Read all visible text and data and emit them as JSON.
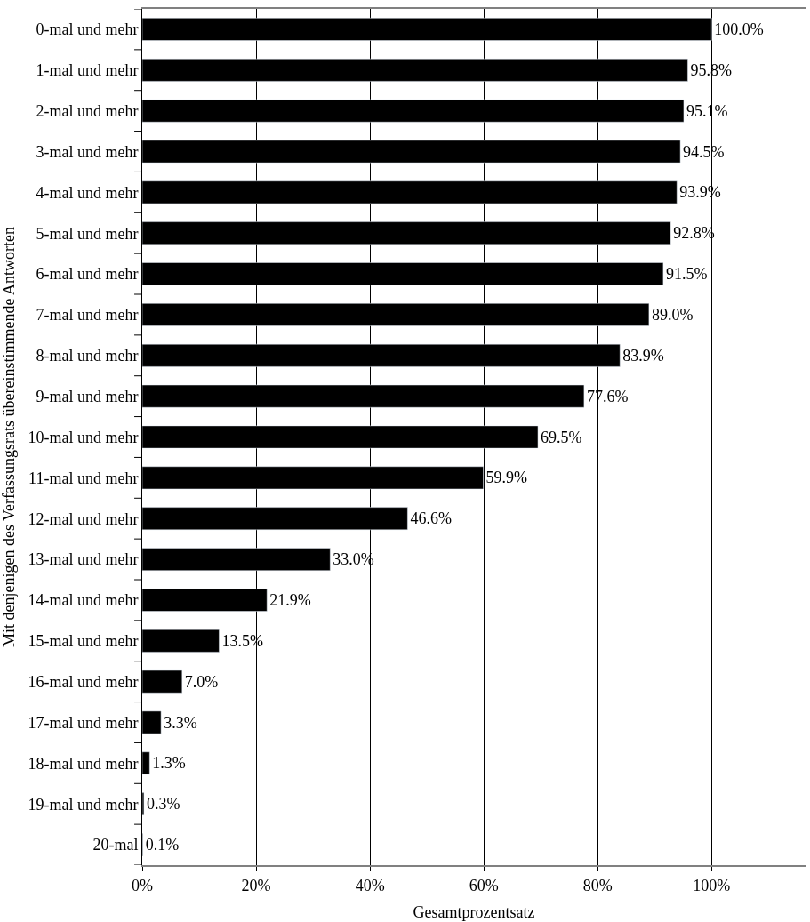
{
  "chart_data": {
    "type": "bar",
    "orientation": "horizontal",
    "xlabel": "Gesamtprozentsatz",
    "ylabel": "Mit denjenigen des Verfassungsrats übereinstimmende Antworten",
    "categories": [
      "0-mal und mehr",
      "1-mal und mehr",
      "2-mal und mehr",
      "3-mal und mehr",
      "4-mal und mehr",
      "5-mal und mehr",
      "6-mal und mehr",
      "7-mal und mehr",
      "8-mal und mehr",
      "9-mal und mehr",
      "10-mal und mehr",
      "11-mal und mehr",
      "12-mal und mehr",
      "13-mal und mehr",
      "14-mal und mehr",
      "15-mal und mehr",
      "16-mal und mehr",
      "17-mal und mehr",
      "18-mal und mehr",
      "19-mal und mehr",
      "20-mal"
    ],
    "values": [
      100.0,
      95.8,
      95.1,
      94.5,
      93.9,
      92.8,
      91.5,
      89.0,
      83.9,
      77.6,
      69.5,
      59.9,
      46.6,
      33.0,
      21.9,
      13.5,
      7.0,
      3.3,
      1.3,
      0.3,
      0.1
    ],
    "value_labels": [
      "100.0%",
      "95.8%",
      "95.1%",
      "94.5%",
      "93.9%",
      "92.8%",
      "91.5%",
      "89.0%",
      "83.9%",
      "77.6%",
      "69.5%",
      "59.9%",
      "46.6%",
      "33.0%",
      "21.9%",
      "13.5%",
      "7.0%",
      "3.3%",
      "1.3%",
      "0.3%",
      "0.1%"
    ],
    "color": "#000000",
    "xlim": [
      0,
      116.5
    ],
    "xticks": [
      {
        "value": 0,
        "label": "0%"
      },
      {
        "value": 20,
        "label": "20%"
      },
      {
        "value": 40,
        "label": "40%"
      },
      {
        "value": 60,
        "label": "60%"
      },
      {
        "value": 80,
        "label": "80%"
      },
      {
        "value": 100,
        "label": "100%"
      }
    ],
    "grid": "x",
    "legend": false
  }
}
